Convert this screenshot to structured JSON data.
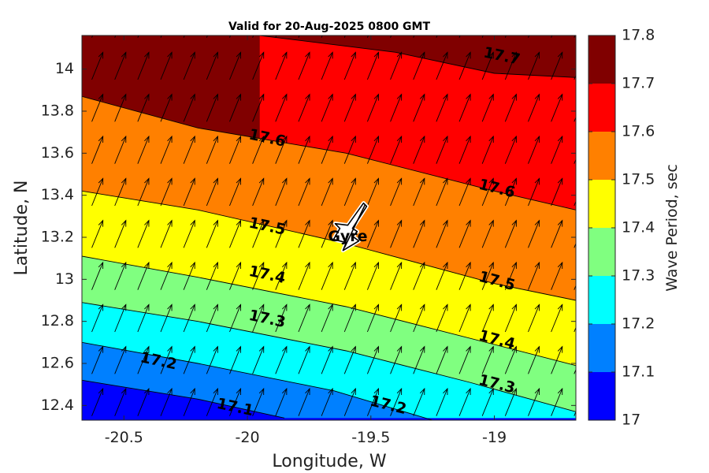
{
  "chart_data": {
    "type": "contour",
    "title": "Valid for 20-Aug-2025 0800 GMT",
    "xlabel": "Longitude, W",
    "ylabel": "Latitude, N",
    "colorbar_label": "Wave Period, sec",
    "xlim": [
      -20.67,
      -18.67
    ],
    "ylim": [
      12.33,
      14.16
    ],
    "xticks": [
      -20.5,
      -20,
      -19.5,
      -19
    ],
    "xtick_labels": [
      "-20.5",
      "-20",
      "-19.5",
      "-19"
    ],
    "yticks": [
      12.4,
      12.6,
      12.8,
      13,
      13.2,
      13.4,
      13.6,
      13.8,
      14
    ],
    "ytick_labels": [
      "12.4",
      "12.6",
      "12.8",
      "13",
      "13.2",
      "13.4",
      "13.6",
      "13.8",
      "14"
    ],
    "levels": [
      17,
      17.1,
      17.2,
      17.3,
      17.4,
      17.5,
      17.6,
      17.7,
      17.8
    ],
    "level_labels": [
      "17",
      "17.1",
      "17.2",
      "17.3",
      "17.4",
      "17.5",
      "17.6",
      "17.7",
      "17.8"
    ],
    "band_colors": [
      "#0000ff",
      "#0080ff",
      "#00ffff",
      "#80ff80",
      "#ffff00",
      "#ff8000",
      "#ff0000",
      "#800000"
    ],
    "contour_lines": [
      {
        "level": "17.1",
        "points": [
          [
            -20.67,
            12.52
          ],
          [
            -20.2,
            12.43
          ],
          [
            -19.85,
            12.34
          ]
        ]
      },
      {
        "level": "17.2",
        "points": [
          [
            -20.67,
            12.7
          ],
          [
            -20.2,
            12.6
          ],
          [
            -19.65,
            12.47
          ],
          [
            -19.25,
            12.33
          ]
        ]
      },
      {
        "level": "17.3",
        "points": [
          [
            -20.67,
            12.89
          ],
          [
            -20.2,
            12.8
          ],
          [
            -19.6,
            12.66
          ],
          [
            -19.1,
            12.51
          ],
          [
            -18.67,
            12.37
          ]
        ]
      },
      {
        "level": "17.4",
        "points": [
          [
            -20.67,
            13.11
          ],
          [
            -20.2,
            13.01
          ],
          [
            -19.6,
            12.87
          ],
          [
            -19.0,
            12.69
          ],
          [
            -18.67,
            12.59
          ]
        ]
      },
      {
        "level": "17.5",
        "points": [
          [
            -20.67,
            13.42
          ],
          [
            -20.2,
            13.33
          ],
          [
            -19.6,
            13.17
          ],
          [
            -19.0,
            12.98
          ],
          [
            -18.67,
            12.9
          ]
        ]
      },
      {
        "level": "17.6",
        "points": [
          [
            -20.67,
            13.87
          ],
          [
            -20.2,
            13.72
          ],
          [
            -19.6,
            13.6
          ],
          [
            -19.0,
            13.42
          ],
          [
            -18.67,
            13.33
          ]
        ]
      },
      {
        "level": "17.7",
        "points": [
          [
            -19.95,
            14.16
          ],
          [
            -19.4,
            14.08
          ],
          [
            -19.0,
            13.98
          ],
          [
            -18.67,
            13.96
          ]
        ]
      }
    ],
    "contour_labels": [
      {
        "text": "17.1",
        "x": -20.05,
        "y": 12.39,
        "angle": 12
      },
      {
        "text": "17.2",
        "x": -20.36,
        "y": 12.61,
        "angle": 12
      },
      {
        "text": "17.2",
        "x": -19.43,
        "y": 12.4,
        "angle": 14
      },
      {
        "text": "17.3",
        "x": -19.92,
        "y": 12.81,
        "angle": 12
      },
      {
        "text": "17.3",
        "x": -18.99,
        "y": 12.5,
        "angle": 14
      },
      {
        "text": "17.4",
        "x": -19.92,
        "y": 13.02,
        "angle": 12
      },
      {
        "text": "17.4",
        "x": -18.99,
        "y": 12.71,
        "angle": 15
      },
      {
        "text": "17.5",
        "x": -19.92,
        "y": 13.25,
        "angle": 12
      },
      {
        "text": "17.5",
        "x": -18.99,
        "y": 12.99,
        "angle": 15
      },
      {
        "text": "17.6",
        "x": -19.92,
        "y": 13.67,
        "angle": 12
      },
      {
        "text": "17.6",
        "x": -18.99,
        "y": 13.43,
        "angle": 14
      },
      {
        "text": "17.7",
        "x": -18.97,
        "y": 14.06,
        "angle": 12
      }
    ],
    "wave_direction_arrows": {
      "x_start": -20.63,
      "x_step": 0.093,
      "y_start": 12.35,
      "y_step": 0.2,
      "dx": 0.045,
      "dy": 0.13
    },
    "annotations": [
      {
        "text": "Gyre",
        "x": -19.6,
        "y": 13.22,
        "symbol": "glider"
      }
    ]
  }
}
